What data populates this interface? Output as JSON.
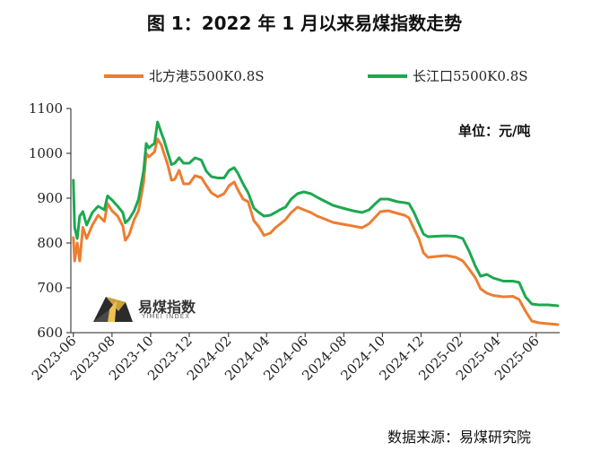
{
  "title": "图 1：2022 年 1 月以来易煤指数走势",
  "unit_label": "单位：元/吨",
  "source": "数据来源：易煤研究院",
  "logo": {
    "text": "易煤指数",
    "subtext": "YIMEI INDEX"
  },
  "colors": {
    "series_1": "#ED7D31",
    "series_2": "#1DA851",
    "axis": "#222222"
  },
  "chart_data": {
    "type": "line",
    "ylim": [
      600,
      1100
    ],
    "yticks": [
      600,
      700,
      800,
      900,
      1000,
      1100
    ],
    "xticks": [
      "2023-06",
      "2023-08",
      "2023-10",
      "2023-12",
      "2024-02",
      "2024-04",
      "2024-06",
      "2024-08",
      "2024-10",
      "2024-12",
      "2025-02",
      "2025-04",
      "2025-06"
    ],
    "xlabel": "",
    "ylabel": "",
    "grid": false,
    "legend_position": "top",
    "series": [
      {
        "name": "北方港5500K0.8S",
        "points": [
          [
            "2023-06-01",
            812
          ],
          [
            "2023-06-03",
            760
          ],
          [
            "2023-06-07",
            800
          ],
          [
            "2023-06-11",
            760
          ],
          [
            "2023-06-16",
            835
          ],
          [
            "2023-06-22",
            810
          ],
          [
            "2023-07-01",
            840
          ],
          [
            "2023-07-10",
            862
          ],
          [
            "2023-07-20",
            848
          ],
          [
            "2023-07-25",
            888
          ],
          [
            "2023-08-01",
            872
          ],
          [
            "2023-08-10",
            860
          ],
          [
            "2023-08-18",
            838
          ],
          [
            "2023-08-22",
            806
          ],
          [
            "2023-08-28",
            818
          ],
          [
            "2023-09-05",
            852
          ],
          [
            "2023-09-12",
            872
          ],
          [
            "2023-09-20",
            936
          ],
          [
            "2023-09-24",
            1000
          ],
          [
            "2023-09-28",
            992
          ],
          [
            "2023-10-03",
            998
          ],
          [
            "2023-10-07",
            1003
          ],
          [
            "2023-10-12",
            1032
          ],
          [
            "2023-10-18",
            1018
          ],
          [
            "2023-10-22",
            1000
          ],
          [
            "2023-10-28",
            975
          ],
          [
            "2023-11-03",
            940
          ],
          [
            "2023-11-08",
            942
          ],
          [
            "2023-11-15",
            962
          ],
          [
            "2023-11-22",
            932
          ],
          [
            "2023-12-01",
            932
          ],
          [
            "2023-12-10",
            950
          ],
          [
            "2023-12-20",
            946
          ],
          [
            "2023-12-28",
            928
          ],
          [
            "2024-01-05",
            912
          ],
          [
            "2024-01-15",
            903
          ],
          [
            "2024-01-25",
            910
          ],
          [
            "2024-02-02",
            928
          ],
          [
            "2024-02-10",
            936
          ],
          [
            "2024-02-16",
            918
          ],
          [
            "2024-02-24",
            898
          ],
          [
            "2024-03-03",
            892
          ],
          [
            "2024-03-12",
            850
          ],
          [
            "2024-03-20",
            836
          ],
          [
            "2024-03-28",
            817
          ],
          [
            "2024-04-07",
            822
          ],
          [
            "2024-04-15",
            834
          ],
          [
            "2024-04-22",
            842
          ],
          [
            "2024-05-01",
            852
          ],
          [
            "2024-05-10",
            868
          ],
          [
            "2024-05-20",
            880
          ],
          [
            "2024-05-30",
            874
          ],
          [
            "2024-06-10",
            868
          ],
          [
            "2024-06-20",
            860
          ],
          [
            "2024-07-01",
            854
          ],
          [
            "2024-07-15",
            846
          ],
          [
            "2024-07-30",
            842
          ],
          [
            "2024-08-15",
            838
          ],
          [
            "2024-08-30",
            834
          ],
          [
            "2024-09-10",
            843
          ],
          [
            "2024-09-20",
            858
          ],
          [
            "2024-09-28",
            870
          ],
          [
            "2024-10-10",
            872
          ],
          [
            "2024-10-25",
            866
          ],
          [
            "2024-11-05",
            862
          ],
          [
            "2024-11-12",
            856
          ],
          [
            "2024-11-20",
            832
          ],
          [
            "2024-11-28",
            808
          ],
          [
            "2024-12-05",
            778
          ],
          [
            "2024-12-12",
            768
          ],
          [
            "2024-12-25",
            770
          ],
          [
            "2025-01-10",
            772
          ],
          [
            "2025-01-25",
            768
          ],
          [
            "2025-02-05",
            760
          ],
          [
            "2025-02-15",
            742
          ],
          [
            "2025-02-25",
            722
          ],
          [
            "2025-03-05",
            698
          ],
          [
            "2025-03-15",
            688
          ],
          [
            "2025-03-25",
            683
          ],
          [
            "2025-04-10",
            680
          ],
          [
            "2025-04-25",
            681
          ],
          [
            "2025-05-05",
            674
          ],
          [
            "2025-05-15",
            648
          ],
          [
            "2025-05-25",
            626
          ],
          [
            "2025-06-05",
            622
          ],
          [
            "2025-06-20",
            620
          ],
          [
            "2025-07-05",
            618
          ]
        ]
      },
      {
        "name": "长江口5500K0.8S",
        "points": [
          [
            "2023-06-01",
            940
          ],
          [
            "2023-06-03",
            835
          ],
          [
            "2023-06-07",
            810
          ],
          [
            "2023-06-11",
            860
          ],
          [
            "2023-06-16",
            870
          ],
          [
            "2023-06-22",
            840
          ],
          [
            "2023-07-01",
            868
          ],
          [
            "2023-07-10",
            882
          ],
          [
            "2023-07-20",
            874
          ],
          [
            "2023-07-25",
            905
          ],
          [
            "2023-08-01",
            896
          ],
          [
            "2023-08-10",
            882
          ],
          [
            "2023-08-18",
            868
          ],
          [
            "2023-08-22",
            845
          ],
          [
            "2023-08-28",
            853
          ],
          [
            "2023-09-05",
            872
          ],
          [
            "2023-09-12",
            898
          ],
          [
            "2023-09-20",
            962
          ],
          [
            "2023-09-24",
            1022
          ],
          [
            "2023-09-28",
            1012
          ],
          [
            "2023-10-03",
            1018
          ],
          [
            "2023-10-07",
            1022
          ],
          [
            "2023-10-12",
            1070
          ],
          [
            "2023-10-18",
            1045
          ],
          [
            "2023-10-22",
            1030
          ],
          [
            "2023-10-28",
            1002
          ],
          [
            "2023-11-03",
            975
          ],
          [
            "2023-11-08",
            978
          ],
          [
            "2023-11-15",
            990
          ],
          [
            "2023-11-22",
            978
          ],
          [
            "2023-12-01",
            978
          ],
          [
            "2023-12-10",
            990
          ],
          [
            "2023-12-20",
            985
          ],
          [
            "2023-12-28",
            960
          ],
          [
            "2024-01-05",
            948
          ],
          [
            "2024-01-15",
            945
          ],
          [
            "2024-01-25",
            945
          ],
          [
            "2024-02-02",
            962
          ],
          [
            "2024-02-10",
            968
          ],
          [
            "2024-02-16",
            955
          ],
          [
            "2024-02-24",
            932
          ],
          [
            "2024-03-03",
            912
          ],
          [
            "2024-03-12",
            878
          ],
          [
            "2024-03-20",
            868
          ],
          [
            "2024-03-28",
            860
          ],
          [
            "2024-04-07",
            862
          ],
          [
            "2024-04-15",
            868
          ],
          [
            "2024-04-22",
            874
          ],
          [
            "2024-05-01",
            880
          ],
          [
            "2024-05-10",
            898
          ],
          [
            "2024-05-20",
            910
          ],
          [
            "2024-05-30",
            914
          ],
          [
            "2024-06-10",
            910
          ],
          [
            "2024-06-20",
            902
          ],
          [
            "2024-07-01",
            894
          ],
          [
            "2024-07-15",
            884
          ],
          [
            "2024-07-30",
            878
          ],
          [
            "2024-08-15",
            872
          ],
          [
            "2024-08-30",
            868
          ],
          [
            "2024-09-10",
            874
          ],
          [
            "2024-09-20",
            888
          ],
          [
            "2024-09-28",
            898
          ],
          [
            "2024-10-10",
            898
          ],
          [
            "2024-10-25",
            892
          ],
          [
            "2024-11-05",
            890
          ],
          [
            "2024-11-12",
            888
          ],
          [
            "2024-11-20",
            868
          ],
          [
            "2024-11-28",
            842
          ],
          [
            "2024-12-05",
            820
          ],
          [
            "2024-12-12",
            814
          ],
          [
            "2024-12-25",
            815
          ],
          [
            "2025-01-10",
            816
          ],
          [
            "2025-01-25",
            815
          ],
          [
            "2025-02-05",
            810
          ],
          [
            "2025-02-15",
            782
          ],
          [
            "2025-02-25",
            748
          ],
          [
            "2025-03-05",
            726
          ],
          [
            "2025-03-15",
            730
          ],
          [
            "2025-03-25",
            722
          ],
          [
            "2025-04-10",
            715
          ],
          [
            "2025-04-25",
            715
          ],
          [
            "2025-05-05",
            712
          ],
          [
            "2025-05-15",
            680
          ],
          [
            "2025-05-25",
            664
          ],
          [
            "2025-06-05",
            662
          ],
          [
            "2025-06-20",
            662
          ],
          [
            "2025-07-05",
            660
          ]
        ]
      }
    ]
  }
}
